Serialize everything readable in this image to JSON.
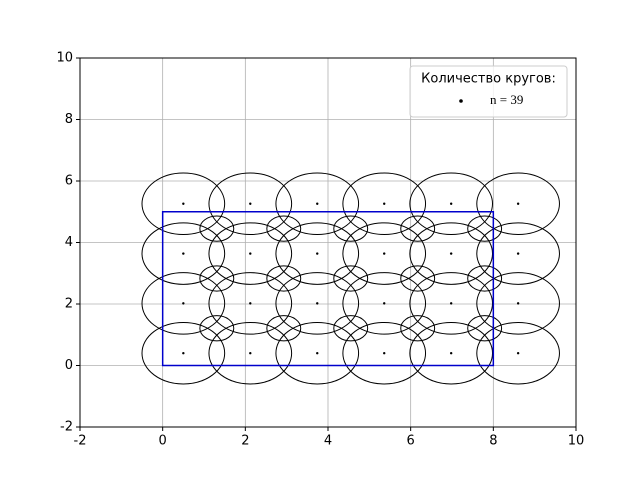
{
  "chart_data": {
    "type": "circles",
    "xlim": [
      -2,
      10
    ],
    "ylim": [
      -2,
      10
    ],
    "xticks": [
      -2,
      0,
      2,
      4,
      6,
      8,
      10
    ],
    "yticks": [
      -2,
      0,
      2,
      4,
      6,
      8,
      10
    ],
    "grid": true,
    "legend_title": "Количество кругов:",
    "legend_label": "n = 39",
    "legend_position": "upper right",
    "large": {
      "color": "#000000",
      "r": 1,
      "x": [
        0.5,
        2.12,
        3.74,
        5.36,
        6.98,
        8.6,
        0.5,
        2.12,
        3.74,
        5.36,
        6.98,
        8.6,
        0.5,
        2.12,
        3.74,
        5.36,
        6.98,
        8.6,
        0.5,
        2.12,
        3.74,
        5.36,
        6.98,
        8.6
      ],
      "y": [
        0.4,
        0.4,
        0.4,
        0.4,
        0.4,
        0.4,
        2.02,
        2.02,
        2.02,
        2.02,
        2.02,
        2.02,
        3.64,
        3.64,
        3.64,
        3.64,
        3.64,
        3.64,
        5.26,
        5.26,
        5.26,
        5.26,
        5.26,
        5.26
      ]
    },
    "small": {
      "color": "#000000",
      "r": 0.41,
      "x": [
        1.31,
        2.93,
        4.55,
        6.17,
        7.79,
        1.31,
        2.93,
        4.55,
        6.17,
        7.79,
        1.31,
        2.93,
        4.55,
        6.17,
        7.79
      ],
      "y": [
        1.21,
        1.21,
        1.21,
        1.21,
        1.21,
        2.83,
        2.83,
        2.83,
        2.83,
        2.83,
        4.45,
        4.45,
        4.45,
        4.45,
        4.45
      ]
    },
    "rect": {
      "color": "#0000cc",
      "x": [
        0,
        8
      ],
      "y": [
        0,
        5
      ]
    }
  }
}
